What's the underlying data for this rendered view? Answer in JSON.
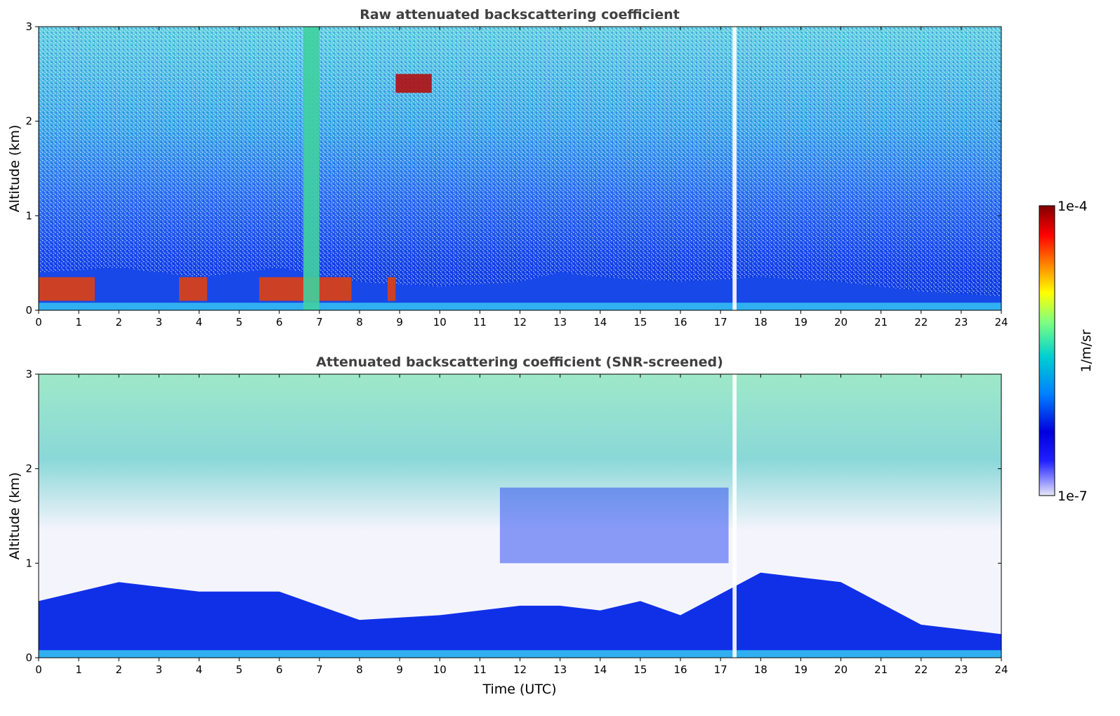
{
  "chart_data": [
    {
      "type": "heatmap",
      "title": "Raw attenuated backscattering coefficient",
      "xlabel": "",
      "ylabel": "Altitude (km)",
      "xlim": [
        0,
        24
      ],
      "ylim": [
        0,
        3
      ],
      "x_ticks": [
        "0",
        "1",
        "2",
        "3",
        "4",
        "5",
        "6",
        "7",
        "8",
        "9",
        "10",
        "11",
        "12",
        "13",
        "14",
        "15",
        "16",
        "17",
        "18",
        "19",
        "20",
        "21",
        "22",
        "23",
        "24"
      ],
      "y_ticks": [
        "0",
        "1",
        "2",
        "3"
      ],
      "features": [
        {
          "feature": "boundary layer aerosol top (km)",
          "x": [
            0,
            2,
            4,
            6,
            8,
            10,
            12,
            13,
            14,
            16,
            18,
            20,
            22,
            24
          ],
          "y": [
            0.4,
            0.45,
            0.35,
            0.45,
            0.3,
            0.25,
            0.3,
            0.4,
            0.35,
            0.3,
            0.35,
            0.3,
            0.2,
            0.15
          ]
        },
        {
          "feature": "high backscatter cloud/aerosol patches",
          "x_range": [
            [
              0,
              1.4
            ],
            [
              3.5,
              4.2
            ],
            [
              5.5,
              7.8
            ],
            [
              8.7,
              8.9
            ]
          ],
          "y_range": [
            0.1,
            0.35
          ]
        },
        {
          "feature": "elevated high backscatter layer",
          "x_range": [
            8.9,
            9.8
          ],
          "y_range": [
            2.3,
            2.5
          ]
        },
        {
          "feature": "strong plume near 7 UTC",
          "x_range": [
            6.6,
            7.0
          ],
          "y_range": [
            0,
            3
          ]
        },
        {
          "feature": "missing data gap",
          "x_range": [
            17.3,
            17.4
          ],
          "y_range": [
            0,
            3
          ]
        }
      ]
    },
    {
      "type": "heatmap",
      "title": "Attenuated backscattering coefficient (SNR-screened)",
      "xlabel": "Time (UTC)",
      "ylabel": "Altitude (km)",
      "xlim": [
        0,
        24
      ],
      "ylim": [
        0,
        3
      ],
      "x_ticks": [
        "0",
        "1",
        "2",
        "3",
        "4",
        "5",
        "6",
        "7",
        "8",
        "9",
        "10",
        "11",
        "12",
        "13",
        "14",
        "15",
        "16",
        "17",
        "18",
        "19",
        "20",
        "21",
        "22",
        "23",
        "24"
      ],
      "y_ticks": [
        "0",
        "1",
        "2",
        "3"
      ],
      "features": [
        {
          "feature": "screened aerosol layer top (km)",
          "x": [
            0,
            2,
            4,
            6,
            8,
            10,
            12,
            13,
            14,
            15,
            16,
            18,
            20,
            22,
            24
          ],
          "y": [
            0.6,
            0.8,
            0.7,
            0.7,
            0.4,
            0.45,
            0.55,
            0.55,
            0.5,
            0.6,
            0.45,
            0.9,
            0.8,
            0.35,
            0.25
          ]
        },
        {
          "feature": "residual layer band",
          "x_range": [
            11.5,
            17.2
          ],
          "y_range": [
            1.0,
            1.8
          ]
        },
        {
          "feature": "missing data gap",
          "x_range": [
            17.3,
            17.4
          ],
          "y_range": [
            0,
            3
          ]
        }
      ]
    }
  ],
  "colorbar": {
    "label": "1/m/sr",
    "top_label": "1e-4",
    "bottom_label": "1e-7",
    "range": [
      1e-07,
      0.0001
    ],
    "scale": "log",
    "colormap": [
      "#e8e8f8",
      "#2020ff",
      "#0000cc",
      "#0080ff",
      "#00d0d0",
      "#80ff80",
      "#ffff00",
      "#ff8000",
      "#ff0000",
      "#800000"
    ]
  }
}
